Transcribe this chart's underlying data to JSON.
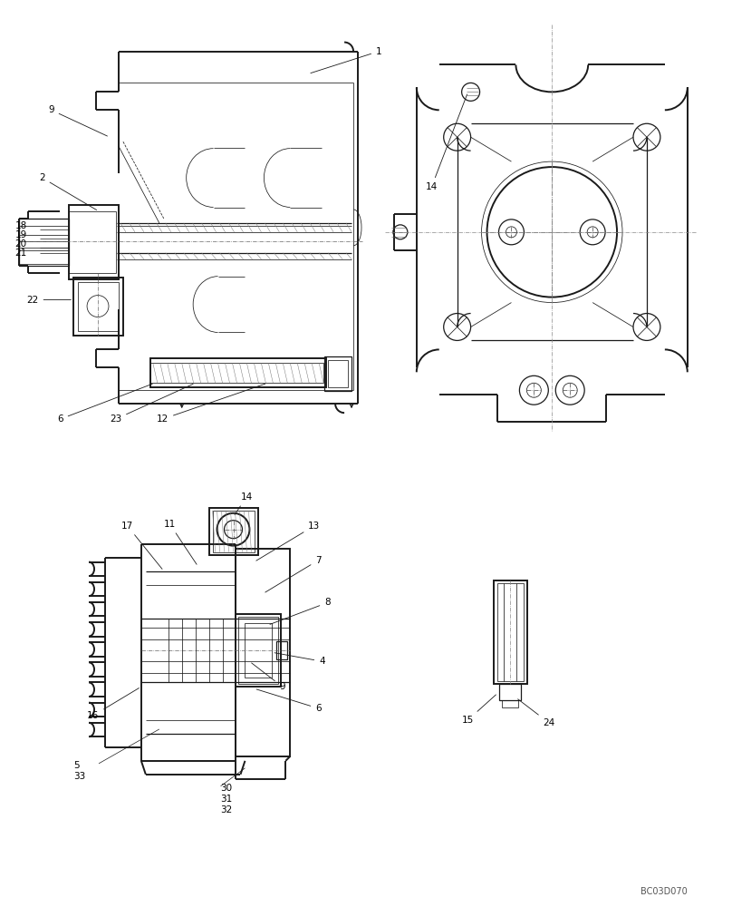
{
  "bg_color": "#ffffff",
  "line_color": "#1a1a1a",
  "lw_thick": 1.4,
  "lw_med": 0.9,
  "lw_thin": 0.55,
  "lw_dash": 0.5,
  "fig_width": 8.08,
  "fig_height": 10.0,
  "watermark": "BC03D070",
  "font_size": 7.5
}
